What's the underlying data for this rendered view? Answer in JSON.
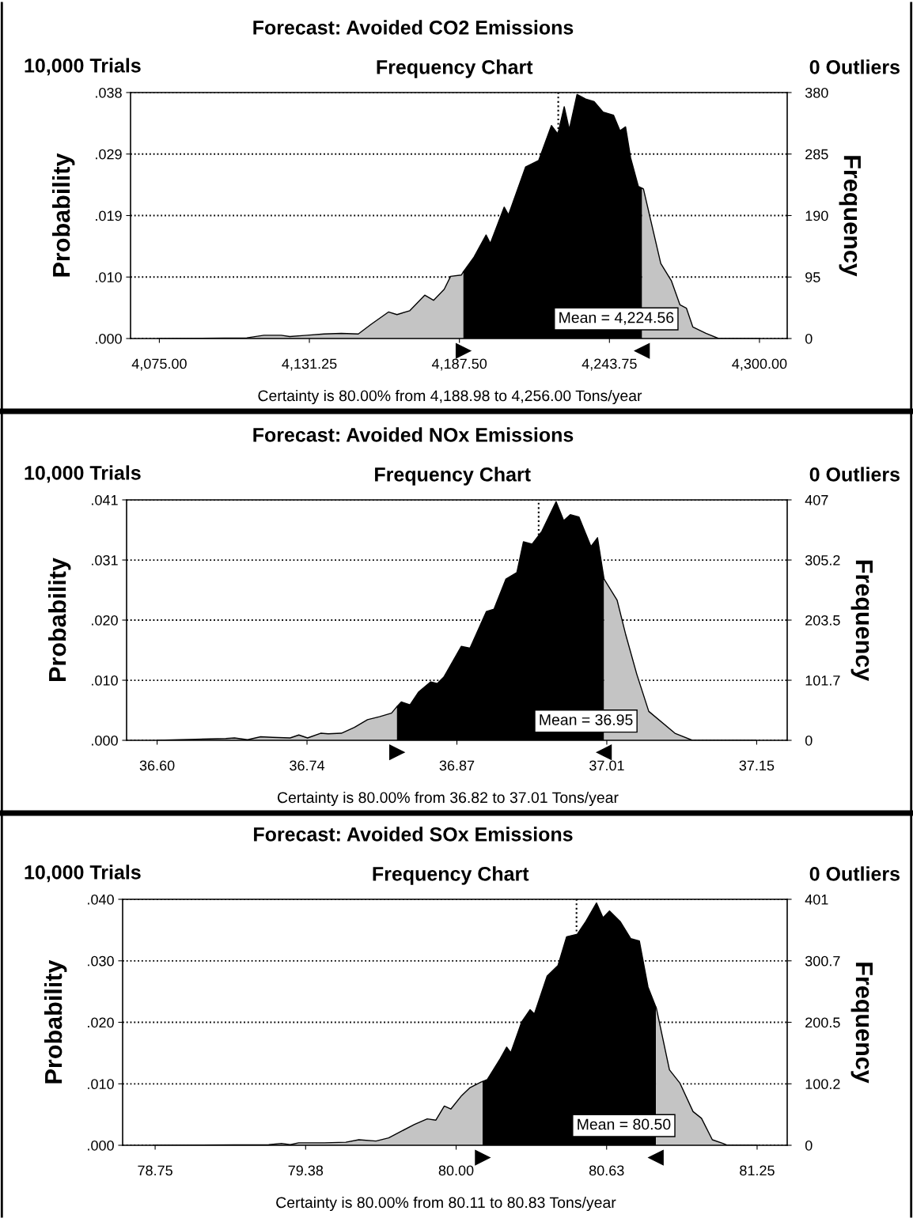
{
  "chart_data": [
    {
      "type": "area",
      "title": "Forecast: Avoided CO2 Emissions",
      "subtitle": "Frequency Chart",
      "ylabel": "Probability",
      "y2label": "Frequency",
      "annotations": [
        "10,000 Trials",
        "0 Outliers",
        "Certainty is 80.00% from 4,188.98 to 4,256.00 Tons/year"
      ],
      "series": [
        {
          "color": "#c4c4c4",
          "x": [
            4075,
            4107.8,
            4114.2,
            4120.7,
            4123.9,
            4130.3,
            4136.7,
            4143.2,
            4149.6,
            4154.4,
            4160.9,
            4164.1,
            4168.9,
            4174.5,
            4177.8,
            4181.8,
            4184.2,
            4188.2,
            4188.98
          ],
          "values": [
            0,
            0.0001,
            0.0005,
            0.0005,
            0.0003,
            0.0005,
            0.0007,
            0.0008,
            0.0007,
            0.0022,
            0.0041,
            0.0037,
            0.0043,
            0.0067,
            0.0059,
            0.0076,
            0.0096,
            0.0098,
            0.0103
          ]
        },
        {
          "color": "#000000",
          "x": [
            4188.98,
            4193.0,
            4197.5,
            4199.1,
            4204.3,
            4205.9,
            4212.3,
            4217.2,
            4222.0,
            4224.4,
            4226.8,
            4228.7,
            4231.6,
            4234.8,
            4238.0,
            4241.3,
            4245.3,
            4247.7,
            4249.8,
            4251.7,
            4254.6,
            4256.0
          ],
          "values": [
            0.0103,
            0.0126,
            0.016,
            0.0147,
            0.0203,
            0.0191,
            0.0265,
            0.0275,
            0.0329,
            0.0316,
            0.0358,
            0.0323,
            0.0377,
            0.037,
            0.0366,
            0.035,
            0.0345,
            0.0321,
            0.0327,
            0.0279,
            0.0235,
            0.0232
          ]
        },
        {
          "color": "#c4c4c4",
          "x": [
            4256.0,
            4256.5,
            4263.0,
            4267.0,
            4270.2,
            4272.6,
            4275.0,
            4279.9,
            4284.7,
            4300
          ],
          "values": [
            0.0232,
            0.0231,
            0.0116,
            0.0089,
            0.0052,
            0.0047,
            0.0018,
            0.0008,
            0,
            0
          ]
        }
      ],
      "xlim": [
        4064.2,
        4310.4
      ],
      "xticks": [
        {
          "value": 4075,
          "label": "4,075.00"
        },
        {
          "value": 4131.25,
          "label": "4,131.25"
        },
        {
          "value": 4187.5,
          "label": "4,187.50"
        },
        {
          "value": 4243.75,
          "label": "4,243.75"
        },
        {
          "value": 4300,
          "label": "4,300.00"
        }
      ],
      "ylim": [
        0,
        0.038
      ],
      "yticks": [
        {
          "value": 0,
          "label": ".000"
        },
        {
          "value": 0.0095,
          "label": ".010"
        },
        {
          "value": 0.019,
          "label": ".019"
        },
        {
          "value": 0.0285,
          "label": ".029"
        },
        {
          "value": 0.038,
          "label": ".038"
        }
      ],
      "y2lim": [
        0,
        380
      ],
      "y2ticks": [
        0,
        95,
        190,
        285,
        380
      ],
      "ref_lines": [
        {
          "axis": "x",
          "value": 4224.56,
          "label": "Mean = 4,224.56",
          "color": "#000000",
          "line_style": "dotted"
        }
      ],
      "grid": "y"
    },
    {
      "type": "area",
      "title": "Forecast: Avoided NOx Emissions",
      "subtitle": "Frequency Chart",
      "ylabel": "Probability",
      "y2label": "Frequency",
      "annotations": [
        "10,000 Trials",
        "0 Outliers",
        "Certainty is 80.00% from 36.82 to 37.01 Tons/year"
      ],
      "series": [
        {
          "color": "#c4c4c4",
          "x": [
            36.6,
            36.663,
            36.671,
            36.683,
            36.695,
            36.706,
            36.722,
            36.73,
            36.738,
            36.75,
            36.757,
            36.769,
            36.781,
            36.793,
            36.804,
            36.815,
            36.82
          ],
          "values": [
            0,
            0.0003,
            0.0004,
            0.0001,
            0.0006,
            0.0005,
            0.0004,
            0.0009,
            0.0004,
            0.0012,
            0.0011,
            0.0012,
            0.0022,
            0.0035,
            0.004,
            0.0046,
            0.0057
          ]
        },
        {
          "color": "#000000",
          "x": [
            36.82,
            36.824,
            36.832,
            36.84,
            36.851,
            36.857,
            36.863,
            36.879,
            36.887,
            36.902,
            36.909,
            36.92,
            36.93,
            36.936,
            36.944,
            36.953,
            36.966,
            36.973,
            36.979,
            36.987,
            36.998,
            37.004,
            37.01
          ],
          "values": [
            0.0057,
            0.0065,
            0.006,
            0.0082,
            0.0099,
            0.0096,
            0.0107,
            0.0159,
            0.0156,
            0.0218,
            0.0222,
            0.0273,
            0.0284,
            0.0336,
            0.0332,
            0.0354,
            0.0404,
            0.0372,
            0.0382,
            0.0378,
            0.0328,
            0.0343,
            0.0273
          ]
        },
        {
          "color": "#c4c4c4",
          "x": [
            37.01,
            37.022,
            37.03,
            37.04,
            37.051,
            37.075,
            37.091,
            37.149
          ],
          "values": [
            0.0273,
            0.0237,
            0.0178,
            0.0112,
            0.0049,
            0.0012,
            0,
            0
          ]
        }
      ],
      "xlim": [
        36.572,
        37.178
      ],
      "xticks": [
        {
          "value": 36.6,
          "label": "36.60"
        },
        {
          "value": 36.7375,
          "label": "36.74"
        },
        {
          "value": 36.875,
          "label": "36.87"
        },
        {
          "value": 37.0125,
          "label": "37.01"
        },
        {
          "value": 37.15,
          "label": "37.15"
        }
      ],
      "ylim": [
        0,
        0.0407
      ],
      "yticks": [
        {
          "value": 0,
          "label": ".000"
        },
        {
          "value": 0.01017,
          "label": ".010"
        },
        {
          "value": 0.02035,
          "label": ".020"
        },
        {
          "value": 0.03052,
          "label": ".031"
        },
        {
          "value": 0.0407,
          "label": ".041"
        }
      ],
      "y2lim": [
        0,
        407
      ],
      "y2ticks": [
        0,
        101.7,
        203.5,
        305.2,
        407
      ],
      "ref_lines": [
        {
          "axis": "x",
          "value": 36.95,
          "label": "Mean = 36.95",
          "color": "#000000",
          "line_style": "dotted"
        }
      ],
      "grid": "y"
    },
    {
      "type": "area",
      "title": "Forecast: Avoided SOx Emissions",
      "subtitle": "Frequency Chart",
      "ylabel": "Probability",
      "y2label": "Frequency",
      "annotations": [
        "10,000 Trials",
        "0 Outliers",
        "Certainty is 80.00% from 80.11 to 80.83 Tons/year"
      ],
      "series": [
        {
          "color": "#c4c4c4",
          "x": [
            78.75,
            79.222,
            79.275,
            79.311,
            79.346,
            79.418,
            79.453,
            79.542,
            79.596,
            79.667,
            79.72,
            79.773,
            79.827,
            79.88,
            79.916,
            79.951,
            79.978,
            80.023,
            80.058,
            80.103,
            80.11
          ],
          "values": [
            0,
            0.0001,
            0.0003,
            0.0001,
            0.0004,
            0.0004,
            0.0004,
            0.0005,
            0.0009,
            0.0007,
            0.0012,
            0.0023,
            0.0034,
            0.0043,
            0.0041,
            0.0064,
            0.0059,
            0.0081,
            0.0094,
            0.0103,
            0.0104
          ]
        },
        {
          "color": "#000000",
          "x": [
            80.11,
            80.129,
            80.183,
            80.21,
            80.227,
            80.272,
            80.307,
            80.325,
            80.378,
            80.423,
            80.459,
            80.503,
            80.539,
            80.583,
            80.61,
            80.637,
            80.681,
            80.725,
            80.761,
            80.797,
            80.83
          ],
          "values": [
            0.0104,
            0.0107,
            0.0141,
            0.016,
            0.0151,
            0.0201,
            0.0221,
            0.0214,
            0.0276,
            0.0293,
            0.034,
            0.0344,
            0.0365,
            0.0395,
            0.0371,
            0.0382,
            0.0365,
            0.0337,
            0.0333,
            0.0258,
            0.0225
          ]
        },
        {
          "color": "#c4c4c4",
          "x": [
            80.83,
            80.832,
            80.886,
            80.93,
            80.984,
            81.019,
            81.064,
            81.108,
            81.126,
            81.25
          ],
          "values": [
            0.0225,
            0.0223,
            0.0123,
            0.0101,
            0.0055,
            0.0044,
            0.0009,
            0.0003,
            0,
            0
          ]
        }
      ],
      "xlim": [
        78.615,
        81.375
      ],
      "xticks": [
        {
          "value": 78.75,
          "label": "78.75"
        },
        {
          "value": 79.375,
          "label": "79.38"
        },
        {
          "value": 80.0,
          "label": "80.00"
        },
        {
          "value": 80.625,
          "label": "80.63"
        },
        {
          "value": 81.25,
          "label": "81.25"
        }
      ],
      "ylim": [
        0,
        0.0401
      ],
      "yticks": [
        {
          "value": 0,
          "label": ".000"
        },
        {
          "value": 0.01002,
          "label": ".010"
        },
        {
          "value": 0.02005,
          "label": ".020"
        },
        {
          "value": 0.03007,
          "label": ".030"
        },
        {
          "value": 0.0401,
          "label": ".040"
        }
      ],
      "y2lim": [
        0,
        401
      ],
      "y2ticks": [
        0,
        100.2,
        200.5,
        300.7,
        401
      ],
      "ref_lines": [
        {
          "axis": "x",
          "value": 80.5,
          "label": "Mean = 80.50",
          "color": "#000000",
          "line_style": "dotted"
        }
      ],
      "grid": "y"
    }
  ]
}
